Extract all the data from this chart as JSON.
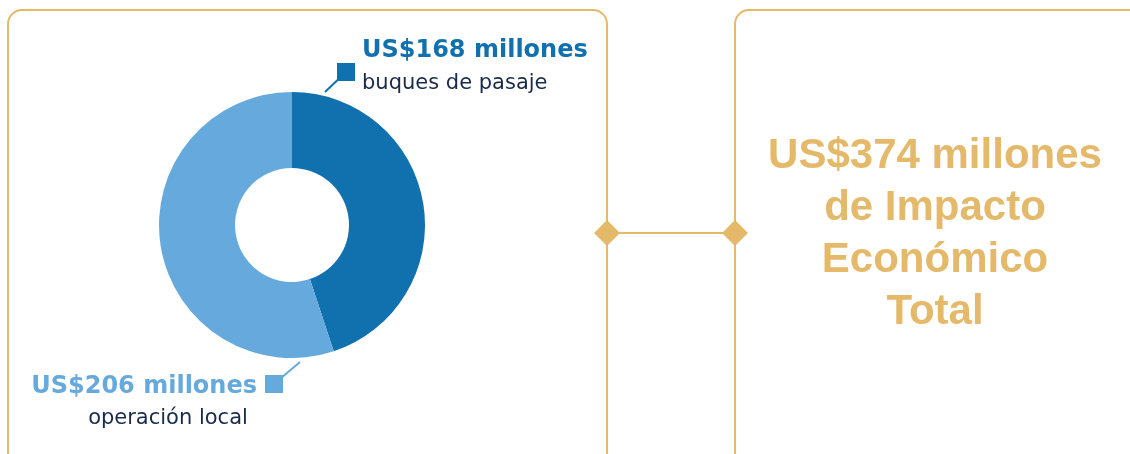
{
  "chart_data": [
    {
      "type": "donut",
      "categories": [
        "buques de pasaje",
        "operación local"
      ],
      "values": [
        168,
        206
      ],
      "colors": [
        "#1170ae",
        "#66aadd"
      ],
      "value_labels": [
        "US$168 millones",
        "US$206 millones"
      ]
    },
    {
      "type": "other",
      "title": "US$374 millones\nde Impacto\nEconómico\nTotal"
    }
  ]
}
